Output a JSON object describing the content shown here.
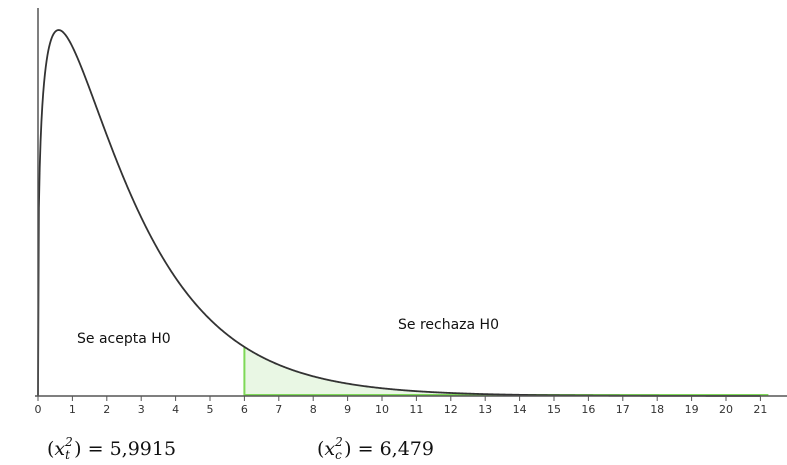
{
  "chart_data": {
    "type": "area",
    "distribution": "chi-square",
    "degrees_of_freedom": 2.6,
    "x_ticks": [
      0,
      1,
      2,
      3,
      4,
      5,
      6,
      7,
      8,
      9,
      10,
      11,
      12,
      13,
      14,
      15,
      16,
      17,
      18,
      19,
      20,
      21
    ],
    "xlim": [
      0,
      21
    ],
    "critical_value_axis": 6,
    "regions": {
      "accept_label": "Se acepta H0",
      "reject_label": "Se rechaza H0"
    },
    "grid": false,
    "colors": {
      "curve": "#333333",
      "critical_line": "#7ed957",
      "reject_fill": "#e9f7e4",
      "axis": "#555555"
    }
  },
  "formulas": {
    "tabulated": {
      "var": "x",
      "sup": "2",
      "sub": "t",
      "equals": ") = ",
      "value": "5,9915"
    },
    "calculated": {
      "var": "x",
      "sup": "2",
      "sub": "c",
      "equals": ") = ",
      "value": "6,479"
    }
  }
}
